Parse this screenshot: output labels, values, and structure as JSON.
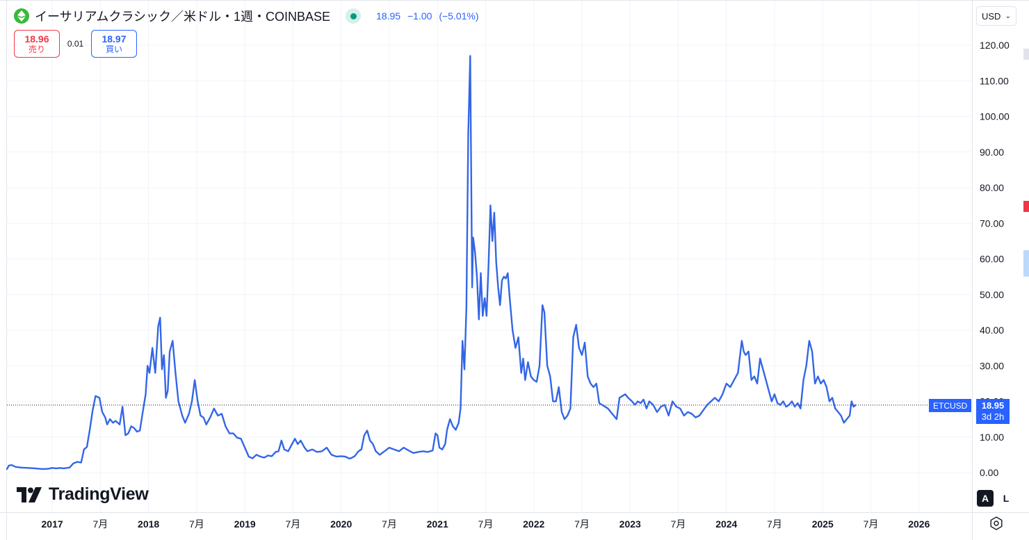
{
  "header": {
    "symbol_title": "イーサリアムクラシック／米ドル・1週・COINBASE",
    "last": "18.95",
    "change": "−1.00",
    "change_pct": "(−5.01%)"
  },
  "trade": {
    "sell_price": "18.96",
    "sell_label": "売り",
    "spread": "0.01",
    "buy_price": "18.97",
    "buy_label": "買い"
  },
  "currency": {
    "value": "USD"
  },
  "price_label": {
    "symbol": "ETCUSD",
    "value": "18.95",
    "countdown": "3d 2h"
  },
  "brand": {
    "name": "TradingView"
  },
  "scale_buttons": {
    "auto": "A",
    "log": "L"
  },
  "colors": {
    "line": "#2962ff",
    "plot_line": "#3366e6",
    "grid": "#f0f3fa",
    "sell": "#f23645",
    "buy": "#2962ff",
    "live": "#089981"
  },
  "icons": {
    "coin": "etc-coin-icon",
    "status": "market-open-dot-icon",
    "settings": "gear-icon"
  },
  "chart_data": {
    "type": "line",
    "title": "",
    "xlabel": "",
    "ylabel": "",
    "ylim": [
      -4,
      126
    ],
    "grid": true,
    "y_ticks": [
      "0.00",
      "10.00",
      "20.00",
      "30.00",
      "40.00",
      "50.00",
      "60.00",
      "70.00",
      "80.00",
      "90.00",
      "100.00",
      "110.00",
      "120.00"
    ],
    "x_ticks": [
      {
        "label": "2017",
        "date": 2017.0
      },
      {
        "label": "7月",
        "date": 2017.5
      },
      {
        "label": "2018",
        "date": 2018.0
      },
      {
        "label": "7月",
        "date": 2018.5
      },
      {
        "label": "2019",
        "date": 2019.0
      },
      {
        "label": "7月",
        "date": 2019.5
      },
      {
        "label": "2020",
        "date": 2020.0
      },
      {
        "label": "7月",
        "date": 2020.5
      },
      {
        "label": "2021",
        "date": 2021.0
      },
      {
        "label": "7月",
        "date": 2021.5
      },
      {
        "label": "2022",
        "date": 2022.0
      },
      {
        "label": "7月",
        "date": 2022.5
      },
      {
        "label": "2023",
        "date": 2023.0
      },
      {
        "label": "7月",
        "date": 2023.5
      },
      {
        "label": "2024",
        "date": 2024.0
      },
      {
        "label": "7月",
        "date": 2024.5
      },
      {
        "label": "2025",
        "date": 2025.0
      },
      {
        "label": "7月",
        "date": 2025.5
      },
      {
        "label": "2026",
        "date": 2026.0
      }
    ],
    "xlim": [
      2016.53,
      2026.55
    ],
    "last_price": 18.95,
    "series": [
      {
        "points": [
          [
            2016.53,
            1.0
          ],
          [
            2016.55,
            2.0
          ],
          [
            2016.58,
            2.1
          ],
          [
            2016.62,
            1.6
          ],
          [
            2016.68,
            1.4
          ],
          [
            2016.75,
            1.3
          ],
          [
            2016.82,
            1.2
          ],
          [
            2016.9,
            1.0
          ],
          [
            2016.96,
            1.1
          ],
          [
            2017.0,
            1.3
          ],
          [
            2017.04,
            1.2
          ],
          [
            2017.08,
            1.3
          ],
          [
            2017.12,
            1.2
          ],
          [
            2017.18,
            1.4
          ],
          [
            2017.22,
            2.6
          ],
          [
            2017.26,
            3.0
          ],
          [
            2017.3,
            2.8
          ],
          [
            2017.33,
            6.5
          ],
          [
            2017.36,
            7.2
          ],
          [
            2017.39,
            12.0
          ],
          [
            2017.42,
            17.5
          ],
          [
            2017.45,
            21.5
          ],
          [
            2017.49,
            21.0
          ],
          [
            2017.52,
            17.0
          ],
          [
            2017.55,
            15.5
          ],
          [
            2017.57,
            13.5
          ],
          [
            2017.6,
            15.0
          ],
          [
            2017.63,
            14.0
          ],
          [
            2017.66,
            14.5
          ],
          [
            2017.7,
            13.5
          ],
          [
            2017.73,
            18.5
          ],
          [
            2017.76,
            10.5
          ],
          [
            2017.79,
            11.0
          ],
          [
            2017.82,
            13.0
          ],
          [
            2017.85,
            12.5
          ],
          [
            2017.88,
            11.5
          ],
          [
            2017.91,
            11.8
          ],
          [
            2017.94,
            17.0
          ],
          [
            2017.97,
            22.0
          ],
          [
            2017.99,
            30.0
          ],
          [
            2018.01,
            28.0
          ],
          [
            2018.04,
            35.0
          ],
          [
            2018.07,
            28.0
          ],
          [
            2018.1,
            41.0
          ],
          [
            2018.12,
            43.5
          ],
          [
            2018.14,
            29.0
          ],
          [
            2018.16,
            33.0
          ],
          [
            2018.18,
            21.0
          ],
          [
            2018.2,
            23.0
          ],
          [
            2018.22,
            34.0
          ],
          [
            2018.25,
            37.0
          ],
          [
            2018.28,
            28.0
          ],
          [
            2018.31,
            20.0
          ],
          [
            2018.35,
            16.0
          ],
          [
            2018.38,
            14.0
          ],
          [
            2018.42,
            16.5
          ],
          [
            2018.45,
            20.0
          ],
          [
            2018.48,
            26.0
          ],
          [
            2018.51,
            20.0
          ],
          [
            2018.54,
            16.0
          ],
          [
            2018.57,
            15.5
          ],
          [
            2018.6,
            13.5
          ],
          [
            2018.64,
            15.5
          ],
          [
            2018.68,
            18.0
          ],
          [
            2018.72,
            16.0
          ],
          [
            2018.76,
            16.5
          ],
          [
            2018.8,
            13.0
          ],
          [
            2018.84,
            11.0
          ],
          [
            2018.88,
            11.0
          ],
          [
            2018.92,
            9.8
          ],
          [
            2018.96,
            9.5
          ],
          [
            2019.0,
            7.0
          ],
          [
            2019.04,
            4.5
          ],
          [
            2019.08,
            4.0
          ],
          [
            2019.12,
            5.0
          ],
          [
            2019.16,
            4.5
          ],
          [
            2019.2,
            4.2
          ],
          [
            2019.24,
            4.8
          ],
          [
            2019.28,
            4.6
          ],
          [
            2019.32,
            5.8
          ],
          [
            2019.35,
            6.0
          ],
          [
            2019.38,
            9.0
          ],
          [
            2019.41,
            6.5
          ],
          [
            2019.45,
            6.0
          ],
          [
            2019.49,
            8.0
          ],
          [
            2019.52,
            9.5
          ],
          [
            2019.55,
            8.0
          ],
          [
            2019.58,
            9.0
          ],
          [
            2019.62,
            7.0
          ],
          [
            2019.65,
            6.0
          ],
          [
            2019.7,
            6.5
          ],
          [
            2019.75,
            5.8
          ],
          [
            2019.8,
            6.0
          ],
          [
            2019.85,
            7.0
          ],
          [
            2019.9,
            5.0
          ],
          [
            2019.95,
            4.5
          ],
          [
            2020.0,
            4.6
          ],
          [
            2020.04,
            4.5
          ],
          [
            2020.08,
            4.0
          ],
          [
            2020.1,
            4.0
          ],
          [
            2020.14,
            4.6
          ],
          [
            2020.18,
            6.0
          ],
          [
            2020.21,
            6.5
          ],
          [
            2020.24,
            10.5
          ],
          [
            2020.27,
            11.8
          ],
          [
            2020.3,
            9.0
          ],
          [
            2020.33,
            8.0
          ],
          [
            2020.36,
            6.0
          ],
          [
            2020.4,
            5.0
          ],
          [
            2020.45,
            6.0
          ],
          [
            2020.5,
            7.0
          ],
          [
            2020.55,
            6.5
          ],
          [
            2020.6,
            6.0
          ],
          [
            2020.65,
            7.0
          ],
          [
            2020.7,
            6.2
          ],
          [
            2020.75,
            5.5
          ],
          [
            2020.8,
            5.8
          ],
          [
            2020.85,
            6.0
          ],
          [
            2020.9,
            5.8
          ],
          [
            2020.95,
            6.2
          ],
          [
            2020.98,
            11.0
          ],
          [
            2021.0,
            10.5
          ],
          [
            2021.02,
            7.0
          ],
          [
            2021.05,
            6.5
          ],
          [
            2021.08,
            8.0
          ],
          [
            2021.1,
            12.0
          ],
          [
            2021.13,
            15.0
          ],
          [
            2021.16,
            13.0
          ],
          [
            2021.19,
            12.0
          ],
          [
            2021.22,
            14.0
          ],
          [
            2021.24,
            18.0
          ],
          [
            2021.26,
            37.0
          ],
          [
            2021.28,
            29.0
          ],
          [
            2021.3,
            46.0
          ],
          [
            2021.32,
            95.0
          ],
          [
            2021.34,
            117.0
          ],
          [
            2021.36,
            52.0
          ],
          [
            2021.37,
            66.0
          ],
          [
            2021.39,
            62.0
          ],
          [
            2021.41,
            55.0
          ],
          [
            2021.43,
            43.0
          ],
          [
            2021.45,
            56.0
          ],
          [
            2021.47,
            44.0
          ],
          [
            2021.49,
            49.0
          ],
          [
            2021.51,
            44.0
          ],
          [
            2021.53,
            58.0
          ],
          [
            2021.55,
            75.0
          ],
          [
            2021.57,
            65.0
          ],
          [
            2021.59,
            73.0
          ],
          [
            2021.61,
            59.0
          ],
          [
            2021.63,
            52.0
          ],
          [
            2021.65,
            47.0
          ],
          [
            2021.67,
            54.0
          ],
          [
            2021.69,
            55.0
          ],
          [
            2021.71,
            54.5
          ],
          [
            2021.73,
            56.0
          ],
          [
            2021.75,
            49.0
          ],
          [
            2021.78,
            40.0
          ],
          [
            2021.81,
            35.0
          ],
          [
            2021.84,
            38.0
          ],
          [
            2021.87,
            28.0
          ],
          [
            2021.89,
            32.0
          ],
          [
            2021.91,
            26.0
          ],
          [
            2021.94,
            31.0
          ],
          [
            2021.97,
            27.0
          ],
          [
            2022.0,
            26.0
          ],
          [
            2022.03,
            25.5
          ],
          [
            2022.06,
            30.0
          ],
          [
            2022.09,
            47.0
          ],
          [
            2022.11,
            45.0
          ],
          [
            2022.14,
            30.0
          ],
          [
            2022.17,
            27.0
          ],
          [
            2022.2,
            20.0
          ],
          [
            2022.23,
            20.0
          ],
          [
            2022.26,
            24.0
          ],
          [
            2022.29,
            17.0
          ],
          [
            2022.32,
            15.0
          ],
          [
            2022.35,
            16.0
          ],
          [
            2022.38,
            18.0
          ],
          [
            2022.41,
            38.0
          ],
          [
            2022.44,
            41.5
          ],
          [
            2022.47,
            35.0
          ],
          [
            2022.5,
            33.0
          ],
          [
            2022.53,
            36.5
          ],
          [
            2022.56,
            27.0
          ],
          [
            2022.59,
            25.0
          ],
          [
            2022.62,
            24.0
          ],
          [
            2022.65,
            25.0
          ],
          [
            2022.68,
            19.5
          ],
          [
            2022.71,
            19.0
          ],
          [
            2022.74,
            18.5
          ],
          [
            2022.77,
            18.0
          ],
          [
            2022.8,
            17.0
          ],
          [
            2022.83,
            16.0
          ],
          [
            2022.86,
            15.0
          ],
          [
            2022.89,
            21.0
          ],
          [
            2022.92,
            21.5
          ],
          [
            2022.95,
            22.0
          ],
          [
            2022.98,
            21.0
          ],
          [
            2023.02,
            20.0
          ],
          [
            2023.05,
            19.0
          ],
          [
            2023.08,
            20.0
          ],
          [
            2023.11,
            19.5
          ],
          [
            2023.14,
            20.5
          ],
          [
            2023.17,
            18.0
          ],
          [
            2023.2,
            20.0
          ],
          [
            2023.24,
            19.0
          ],
          [
            2023.28,
            17.0
          ],
          [
            2023.32,
            18.5
          ],
          [
            2023.36,
            19.0
          ],
          [
            2023.4,
            16.0
          ],
          [
            2023.44,
            20.0
          ],
          [
            2023.48,
            18.5
          ],
          [
            2023.52,
            18.0
          ],
          [
            2023.56,
            16.0
          ],
          [
            2023.6,
            17.0
          ],
          [
            2023.64,
            16.5
          ],
          [
            2023.68,
            15.5
          ],
          [
            2023.72,
            16.0
          ],
          [
            2023.76,
            17.5
          ],
          [
            2023.8,
            19.0
          ],
          [
            2023.84,
            20.0
          ],
          [
            2023.88,
            21.0
          ],
          [
            2023.92,
            20.0
          ],
          [
            2023.96,
            22.0
          ],
          [
            2024.0,
            25.0
          ],
          [
            2024.04,
            24.0
          ],
          [
            2024.08,
            26.0
          ],
          [
            2024.12,
            28.0
          ],
          [
            2024.16,
            37.0
          ],
          [
            2024.18,
            34.0
          ],
          [
            2024.2,
            33.0
          ],
          [
            2024.23,
            34.0
          ],
          [
            2024.26,
            26.0
          ],
          [
            2024.29,
            27.0
          ],
          [
            2024.32,
            25.0
          ],
          [
            2024.35,
            32.0
          ],
          [
            2024.38,
            29.0
          ],
          [
            2024.41,
            26.0
          ],
          [
            2024.44,
            23.0
          ],
          [
            2024.47,
            20.0
          ],
          [
            2024.5,
            22.0
          ],
          [
            2024.53,
            19.5
          ],
          [
            2024.56,
            19.0
          ],
          [
            2024.59,
            20.0
          ],
          [
            2024.62,
            18.5
          ],
          [
            2024.65,
            19.0
          ],
          [
            2024.68,
            20.0
          ],
          [
            2024.71,
            18.5
          ],
          [
            2024.74,
            19.5
          ],
          [
            2024.77,
            18.0
          ],
          [
            2024.8,
            26.0
          ],
          [
            2024.83,
            30.0
          ],
          [
            2024.86,
            37.0
          ],
          [
            2024.89,
            34.0
          ],
          [
            2024.92,
            25.0
          ],
          [
            2024.95,
            27.0
          ],
          [
            2024.98,
            25.0
          ],
          [
            2025.01,
            26.0
          ],
          [
            2025.04,
            24.0
          ],
          [
            2025.07,
            20.0
          ],
          [
            2025.1,
            21.0
          ],
          [
            2025.13,
            18.0
          ],
          [
            2025.16,
            17.0
          ],
          [
            2025.19,
            16.0
          ],
          [
            2025.22,
            14.0
          ],
          [
            2025.25,
            15.0
          ],
          [
            2025.28,
            16.0
          ],
          [
            2025.3,
            20.0
          ],
          [
            2025.32,
            18.5
          ],
          [
            2025.34,
            18.95
          ]
        ]
      }
    ]
  }
}
